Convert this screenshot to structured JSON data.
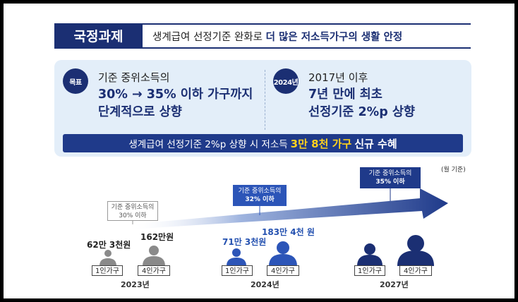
{
  "header": {
    "badge": "국정과제",
    "text_plain": "생계급여 선정기준 완화로 ",
    "text_bold": "더 많은 저소득가구의 생활 안정"
  },
  "goal": {
    "badge": "목표",
    "line1": "기준 중위소득의",
    "line2": "30% → 35% 이하 가구까지",
    "line3": "단계적으로 상향"
  },
  "since": {
    "badge": "2024년",
    "line1": "2017년 이후",
    "line2": "7년 만에 최초",
    "line3": "선정기준 2%p 상향"
  },
  "banner": {
    "plain": "생계급여 선정기준 2%p 상향 시 저소득",
    "highlight": "3만 8천 가구",
    "bold": "신규 수혜"
  },
  "unit_note": "(월 기준)",
  "stages": [
    {
      "year": "2023년",
      "label1": "기준 중위소득의",
      "label2": "30% 이하",
      "amount1": "62만 3천원",
      "amount4": "162만원",
      "tag1": "1인가구",
      "tag4": "4인가구"
    },
    {
      "year": "2024년",
      "label1": "기준 중위소득의",
      "label2": "32% 이하",
      "amount1": "71만 3천원",
      "amount4": "183만 4천 원",
      "tag1": "1인가구",
      "tag4": "4인가구"
    },
    {
      "year": "2027년",
      "label1": "기준 중위소득의",
      "label2": "35% 이하",
      "tag1": "1인가구",
      "tag4": "4인가구"
    }
  ],
  "colors": {
    "navy": "#1b2f73",
    "blue": "#2c55b8",
    "light": "#e3eef9",
    "yellow": "#ffd21e",
    "gray_person": "#8a8a8a"
  }
}
